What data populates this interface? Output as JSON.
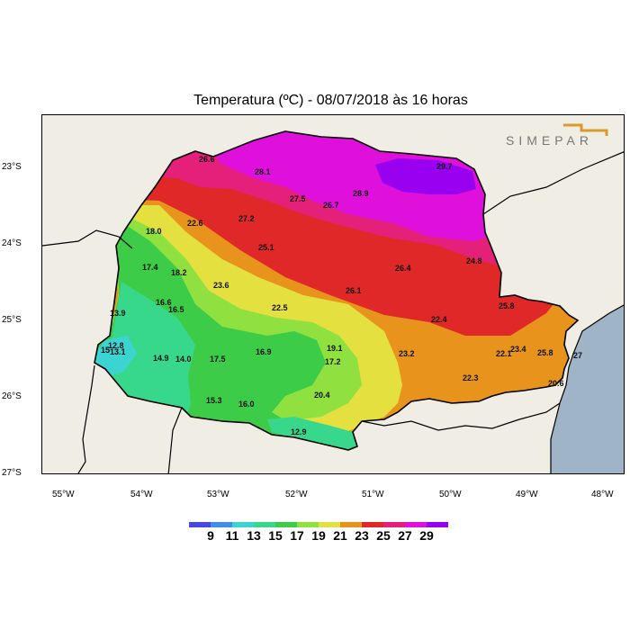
{
  "title": "Temperatura (ºC)  -  08/07/2018 às 16 horas",
  "logo": {
    "text": "SIMEPAR",
    "color": "#d99a2b"
  },
  "latitude_labels": [
    "23°S",
    "24°S",
    "25°S",
    "26°S",
    "27°S"
  ],
  "longitude_labels": [
    "55°W",
    "54°W",
    "53°W",
    "52°W",
    "51°W",
    "50°W",
    "49°W",
    "48°W"
  ],
  "legend": {
    "colors": [
      "#4848e0",
      "#3f8ee8",
      "#3cd4d0",
      "#38d88c",
      "#3ccc48",
      "#90e040",
      "#e4e040",
      "#e8941c",
      "#e02828",
      "#e4207a",
      "#e010dc",
      "#9a00f0"
    ],
    "ticks": [
      "9",
      "11",
      "13",
      "15",
      "17",
      "19",
      "21",
      "23",
      "25",
      "27",
      "29"
    ]
  },
  "zone_colors": {
    "z13": "#3cd4d0",
    "z15": "#38d88c",
    "z17": "#3ccc48",
    "z19": "#90e040",
    "z21": "#e4e040",
    "z23": "#e8941c",
    "z25": "#e02828",
    "z27": "#e4207a",
    "z29": "#e010dc",
    "z31": "#9a00f0",
    "ocean": "#a0b4c8",
    "land": "#efede4"
  },
  "station_values": [
    {
      "v": "26.6"
    },
    {
      "v": "28.1"
    },
    {
      "v": "29.7"
    },
    {
      "v": "27.5"
    },
    {
      "v": "28.9"
    },
    {
      "v": "26.7"
    },
    {
      "v": "22.6"
    },
    {
      "v": "27.2"
    },
    {
      "v": "18.0"
    },
    {
      "v": "25.1"
    },
    {
      "v": "17.4"
    },
    {
      "v": "18.2"
    },
    {
      "v": "26.4"
    },
    {
      "v": "24.8"
    },
    {
      "v": "23.6"
    },
    {
      "v": "26.1"
    },
    {
      "v": "16.6"
    },
    {
      "v": "16.5"
    },
    {
      "v": "22.5"
    },
    {
      "v": "13.9"
    },
    {
      "v": "25.8"
    },
    {
      "v": "22.4"
    },
    {
      "v": "12.8"
    },
    {
      "v": "19.1"
    },
    {
      "v": "23.4"
    },
    {
      "v": "16.9"
    },
    {
      "v": "23.2"
    },
    {
      "v": "22.1"
    },
    {
      "v": "25.8"
    },
    {
      "v": "14.9"
    },
    {
      "v": "14.0"
    },
    {
      "v": "17.5"
    },
    {
      "v": "17.2"
    },
    {
      "v": "22.3"
    },
    {
      "v": "20.6"
    },
    {
      "v": "20.4"
    },
    {
      "v": "15.3"
    },
    {
      "v": "16.0"
    },
    {
      "v": "12.9"
    },
    {
      "v": "15"
    },
    {
      "v": "13.1"
    },
    {
      "v": "27"
    }
  ]
}
